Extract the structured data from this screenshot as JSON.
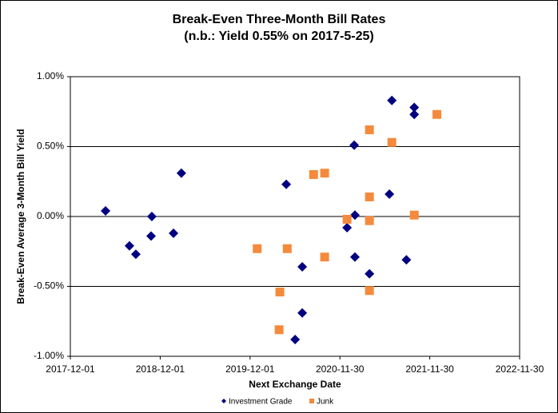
{
  "chart_data": {
    "type": "scatter",
    "title": "Break-Even Three-Month Bill Rates",
    "subtitle": "(n.b.: Yield 0.55% on 2017-5-25)",
    "x_label": "Next Exchange Date",
    "y_label": "Break-Even Average 3-Month Bill Yield",
    "xlim": [
      "2017-12-01",
      "2022-11-30"
    ],
    "xticks": [
      "2017-12-01",
      "2018-12-01",
      "2019-12-01",
      "2020-11-30",
      "2021-11-30",
      "2022-11-30"
    ],
    "ylim": [
      -1,
      1
    ],
    "yticks": [
      {
        "value": -1,
        "label": "-1.00%"
      },
      {
        "value": -0.5,
        "label": "-0.50%"
      },
      {
        "value": 0,
        "label": "0.00%"
      },
      {
        "value": 0.5,
        "label": "0.50%"
      },
      {
        "value": 1,
        "label": "1.00%"
      }
    ],
    "grid": true,
    "legend": "bottom",
    "series": [
      {
        "name": "Investment Grade",
        "color": "#000080",
        "marker": "diamond",
        "x": [
          "2018-04-23",
          "2018-07-29",
          "2018-08-24",
          "2018-10-28",
          "2018-10-25",
          "2019-01-24",
          "2019-02-25",
          "2020-04-26",
          "2020-06-30",
          "2020-06-30",
          "2020-06-01",
          "2020-12-29",
          "2021-01-27",
          "2021-01-30",
          "2021-01-30",
          "2021-03-30",
          "2021-06-29",
          "2021-06-19",
          "2021-09-28",
          "2021-09-28",
          "2021-08-27"
        ],
        "values": [
          0.04,
          -0.21,
          -0.27,
          0.0,
          -0.14,
          -0.12,
          0.31,
          0.23,
          -0.36,
          -0.69,
          -0.88,
          -0.08,
          0.51,
          0.01,
          -0.29,
          -0.41,
          0.83,
          0.16,
          0.78,
          0.73,
          -0.31
        ]
      },
      {
        "name": "Junk",
        "color": "#f58a3c",
        "marker": "square",
        "x": [
          "2019-12-30",
          "2020-03-31",
          "2020-03-28",
          "2020-04-30",
          "2020-08-15",
          "2020-09-29",
          "2020-09-29",
          "2020-12-29",
          "2021-03-30",
          "2021-03-30",
          "2021-03-30",
          "2021-03-30",
          "2021-06-29",
          "2021-09-28",
          "2021-12-29"
        ],
        "values": [
          -0.23,
          -0.54,
          -0.81,
          -0.23,
          0.3,
          0.31,
          -0.29,
          -0.02,
          0.62,
          0.14,
          -0.03,
          -0.53,
          0.53,
          0.01,
          0.73
        ]
      }
    ]
  }
}
